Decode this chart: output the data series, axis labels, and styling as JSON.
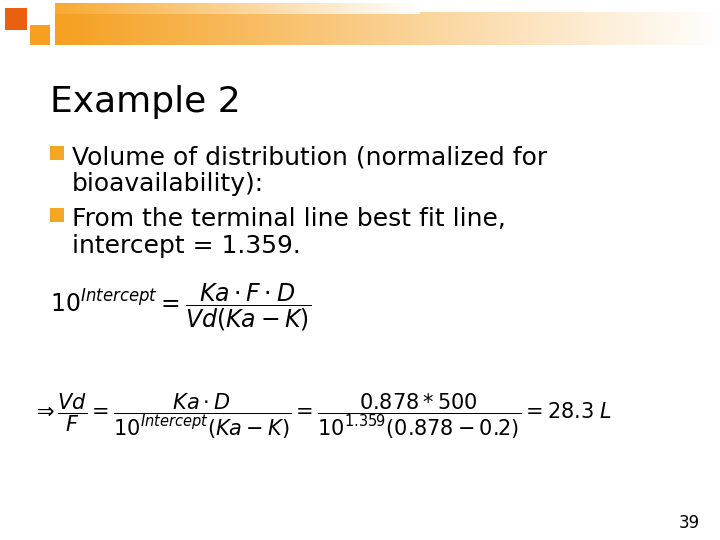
{
  "title": "Example 2",
  "bullet1_line1": "Volume of distribution (normalized for",
  "bullet1_line2": "bioavailability):",
  "bullet2_line1": "From the terminal line best fit line,",
  "bullet2_line2": "intercept = 1.359.",
  "page_number": "39",
  "bg_color": "#ffffff",
  "title_color": "#000000",
  "bullet_color": "#F5A623",
  "text_color": "#000000",
  "title_fontsize": 26,
  "bullet_fontsize": 18,
  "formula1_fontsize": 17,
  "formula2_fontsize": 15,
  "page_fontsize": 12,
  "bar1_color": "#F5A020",
  "bar2_color": "#F5A020",
  "sq1_color": "#E86010",
  "sq2_color": "#F5A020"
}
